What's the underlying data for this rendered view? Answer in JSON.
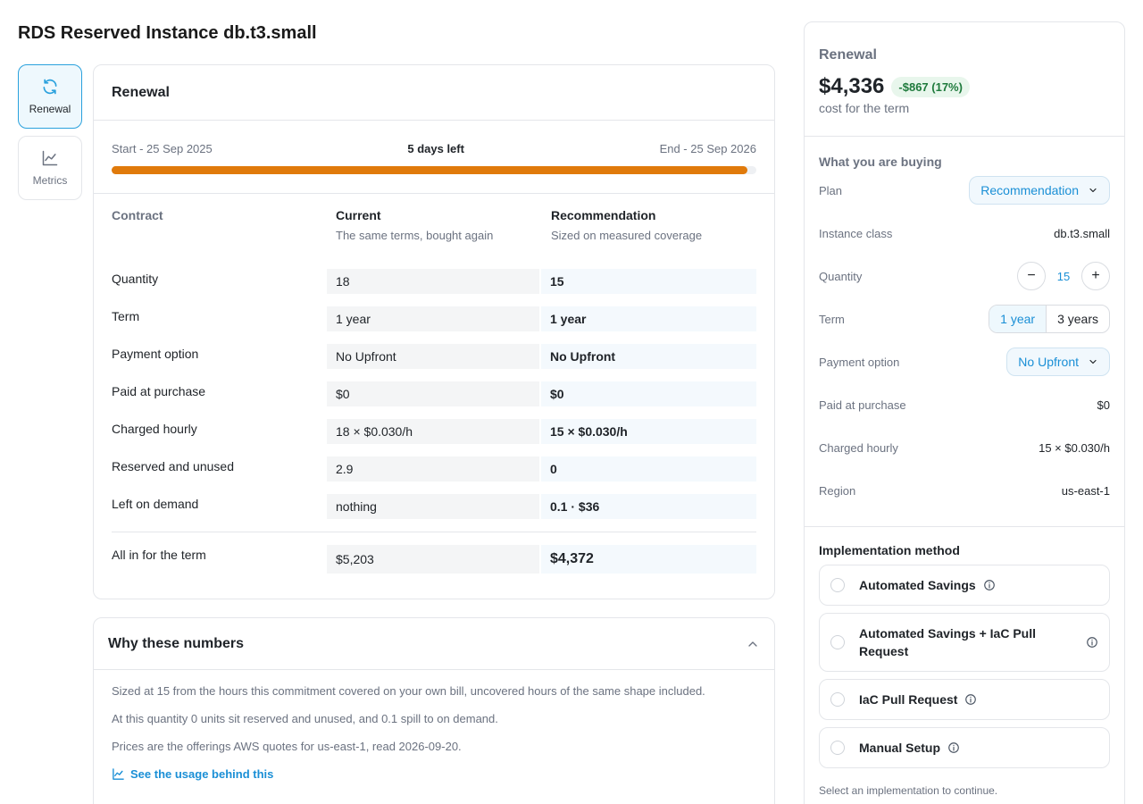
{
  "page": {
    "title": "RDS Reserved Instance db.t3.small"
  },
  "nav": {
    "items": [
      {
        "label": "Renewal",
        "icon": "refresh-icon",
        "active": true
      },
      {
        "label": "Metrics",
        "icon": "line-chart-icon",
        "active": false
      }
    ]
  },
  "renewal": {
    "title": "Renewal",
    "start_label": "Start - 25 Sep 2025",
    "days_left": "5 days left",
    "end_label": "End - 25 Sep 2026",
    "progress_fraction": 0.986,
    "progress_color": "#e07a0b",
    "contract": {
      "header": "Contract",
      "current_title": "Current",
      "current_sub": "The same terms, bought again",
      "recommendation_title": "Recommendation",
      "recommendation_sub": "Sized on measured coverage",
      "rows": [
        {
          "label": "Quantity",
          "current": "18",
          "recommended": "15"
        },
        {
          "label": "Term",
          "current": "1 year",
          "recommended": "1 year"
        },
        {
          "label": "Payment option",
          "current": "No Upfront",
          "recommended": "No Upfront"
        },
        {
          "label": "Paid at purchase",
          "current": "$0",
          "recommended": "$0"
        },
        {
          "label": "Charged hourly",
          "current": "18 × $0.030/h",
          "recommended": "15 × $0.030/h"
        },
        {
          "label": "Reserved and unused",
          "current": "2.9",
          "recommended": "0"
        },
        {
          "label": "Left on demand",
          "current": "nothing",
          "recommended": "0.1 · $36"
        }
      ],
      "total": {
        "label": "All in for the term",
        "current": "$5,203",
        "recommended": "$4,372"
      }
    }
  },
  "why": {
    "title": "Why these numbers",
    "lines": [
      "Sized at 15 from the hours this commitment covered on your own bill, uncovered hours of the same shape included.",
      "At this quantity 0 units sit reserved and unused, and 0.1 spill to on demand.",
      "Prices are the offerings AWS quotes for us-east-1, read 2026-09-20."
    ],
    "link": "See the usage behind this"
  },
  "panel": {
    "title": "Renewal",
    "price": "$4,336",
    "savings_badge": "-$867 (17%)",
    "price_sub": "cost for the term",
    "buying_header": "What you are buying",
    "plan_label": "Plan",
    "plan_value": "Recommendation",
    "instance_label": "Instance class",
    "instance_value": "db.t3.small",
    "quantity_label": "Quantity",
    "quantity_value": "15",
    "term_label": "Term",
    "term_options": [
      "1 year",
      "3 years"
    ],
    "payment_label": "Payment option",
    "payment_value": "No Upfront",
    "paid_label": "Paid at purchase",
    "paid_value": "$0",
    "hourly_label": "Charged hourly",
    "hourly_value": "15 × $0.030/h",
    "region_label": "Region",
    "region_value": "us-east-1",
    "impl_header": "Implementation method",
    "impl_options": [
      "Automated Savings",
      "Automated Savings + IaC Pull Request",
      "IaC Pull Request",
      "Manual Setup"
    ],
    "impl_hint": "Select an implementation to continue."
  },
  "colors": {
    "accent": "#1a8fd6",
    "active_border": "#2aa1dd",
    "progress": "#e07a0b",
    "savings_bg": "#e8f6ec",
    "savings_text": "#1e7a3c"
  }
}
